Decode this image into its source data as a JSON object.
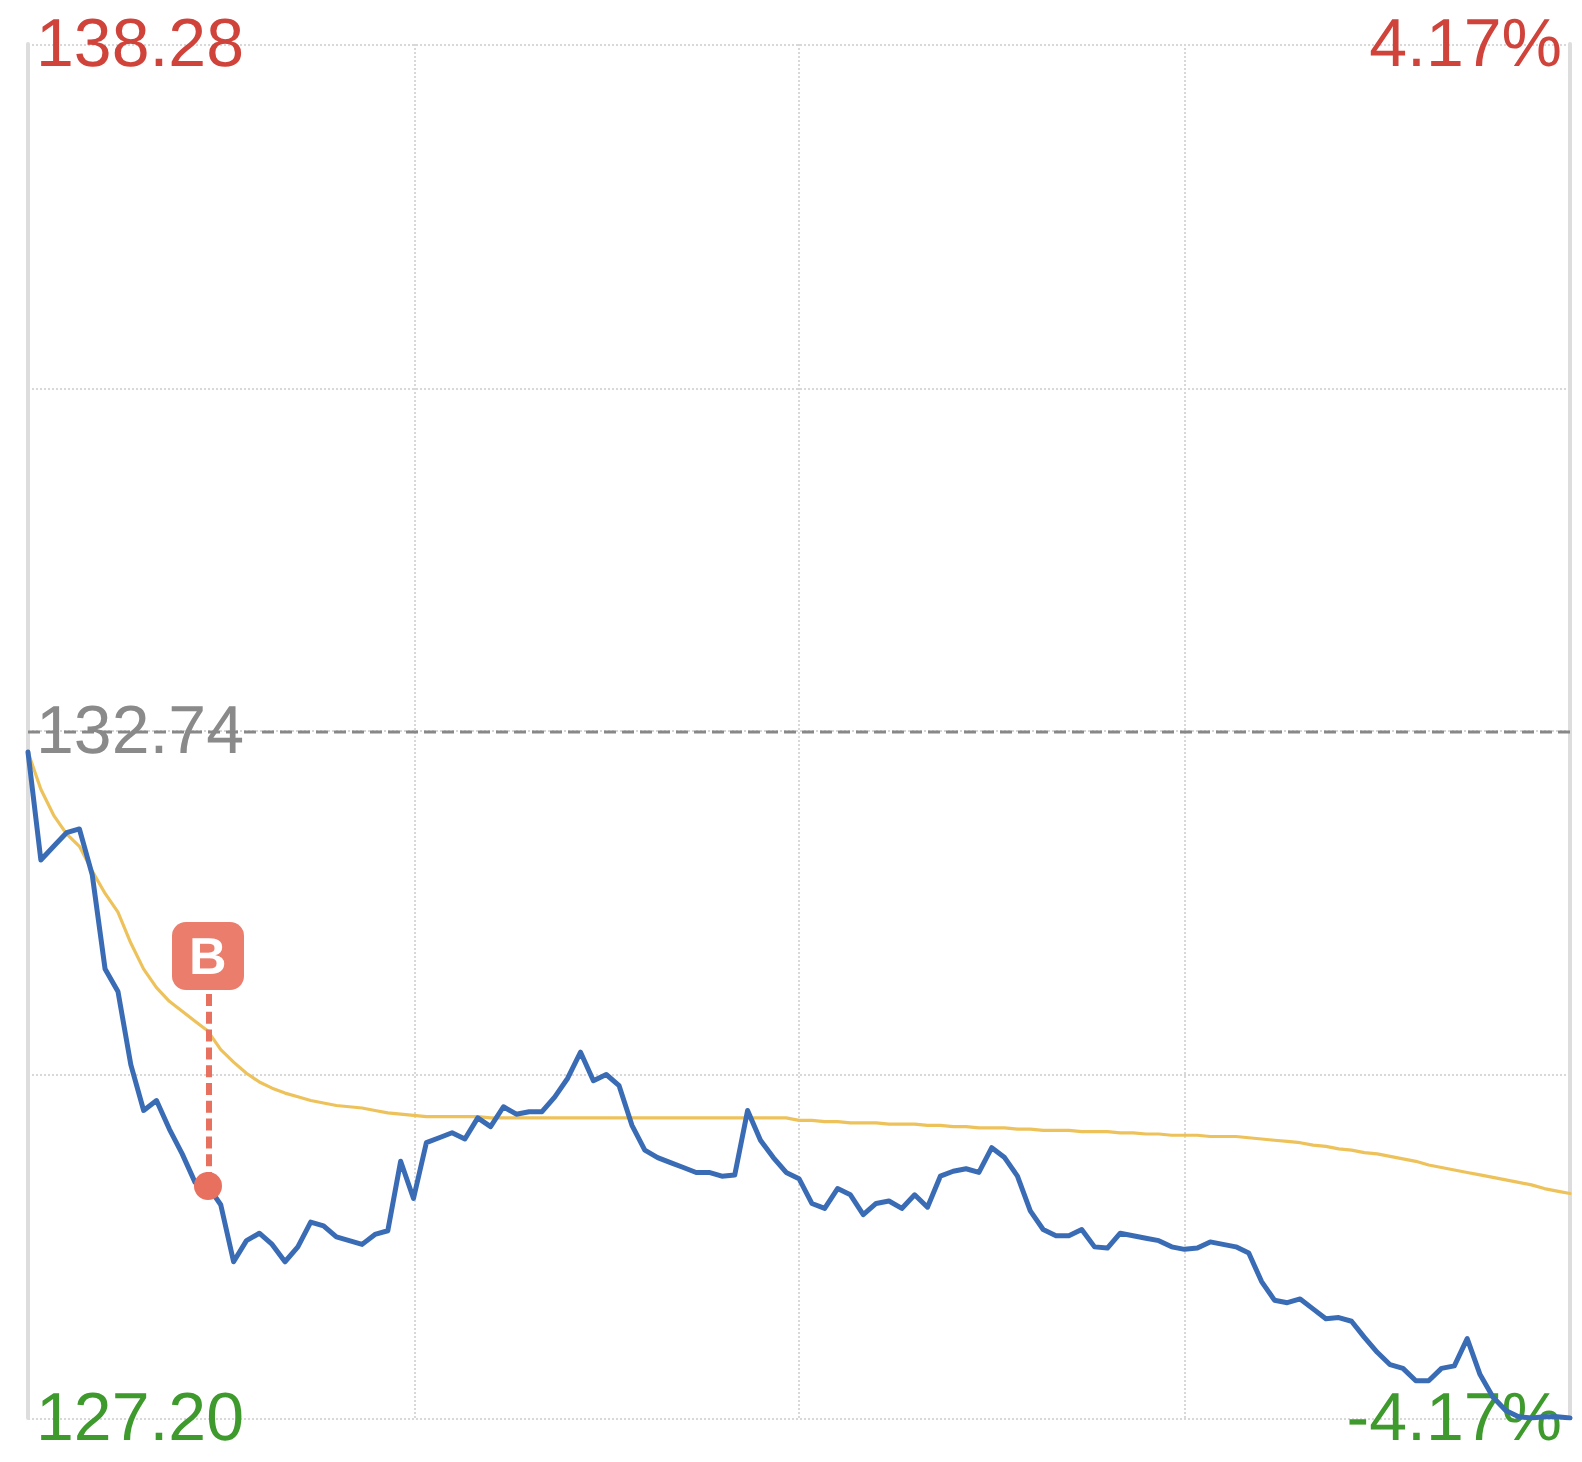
{
  "chart_data": {
    "type": "line",
    "categories": [
      null,
      null,
      null,
      null,
      null,
      null,
      null,
      null,
      null,
      null,
      null,
      null,
      null,
      null,
      null,
      null,
      null,
      null,
      null,
      null,
      null,
      null,
      null,
      null,
      null,
      null,
      null,
      null,
      null,
      null,
      null,
      null,
      null,
      null,
      null,
      null,
      null,
      null,
      null,
      null,
      null,
      null,
      null,
      null,
      null,
      null,
      null,
      null,
      null,
      null,
      null,
      null,
      null,
      null,
      null,
      null,
      null,
      null,
      null,
      null,
      null,
      null,
      null,
      null,
      null,
      null,
      null,
      null,
      null,
      null,
      null,
      null,
      null,
      null,
      null,
      null,
      null,
      null,
      null,
      null,
      null,
      null,
      null,
      null,
      null,
      null,
      null,
      null,
      null,
      null,
      null,
      null,
      null,
      null,
      null,
      null,
      null,
      null,
      null,
      null,
      null,
      null,
      null,
      null,
      null,
      null,
      null,
      null,
      null,
      null,
      null,
      null,
      null,
      null,
      null,
      null,
      null,
      null,
      null,
      null,
      null
    ],
    "ylim": [
      127.2,
      138.28
    ],
    "yticks": [
      {
        "value": 127.2,
        "label": "127.20"
      },
      {
        "value": 129.97,
        "label": null
      },
      {
        "value": 132.74,
        "label": "132.74"
      },
      {
        "value": 135.51,
        "label": null
      },
      {
        "value": 138.28,
        "label": "138.28"
      }
    ],
    "y2lim": [
      -4.17,
      4.17
    ],
    "y2ticks": [
      {
        "value": -4.17,
        "label": "-4.17%"
      },
      {
        "value": 4.17,
        "label": "4.17%"
      }
    ],
    "tick_labels": "y",
    "grid": true,
    "line_style": "solid",
    "ref_lines": [
      {
        "axis": "y",
        "value": 132.74,
        "color": "#888888",
        "line_style": "dashed"
      }
    ],
    "annotations": [
      {
        "text": "B",
        "y": 129.07
      }
    ],
    "series": [
      {
        "color": "#3a6cb5",
        "values": [
          132.57,
          131.7,
          131.81,
          131.92,
          131.95,
          131.58,
          130.82,
          130.64,
          130.05,
          129.68,
          129.76,
          129.53,
          129.33,
          129.1,
          129.07,
          128.92,
          128.46,
          128.63,
          128.69,
          128.6,
          128.46,
          128.58,
          128.78,
          128.75,
          128.66,
          128.63,
          128.6,
          128.68,
          128.71,
          129.27,
          128.97,
          129.42,
          129.46,
          129.5,
          129.45,
          129.62,
          129.55,
          129.71,
          129.65,
          129.67,
          129.67,
          129.79,
          129.94,
          130.15,
          129.92,
          129.97,
          129.88,
          129.56,
          129.36,
          129.3,
          129.26,
          129.22,
          129.18,
          129.18,
          129.15,
          129.16,
          129.68,
          129.44,
          129.3,
          129.18,
          129.13,
          128.93,
          128.89,
          129.05,
          129.0,
          128.84,
          128.93,
          128.95,
          128.89,
          129.0,
          128.9,
          129.15,
          129.19,
          129.21,
          129.18,
          129.38,
          129.3,
          129.15,
          128.87,
          128.72,
          128.67,
          128.67,
          128.72,
          128.58,
          128.57,
          128.69,
          128.67,
          128.65,
          128.63,
          128.58,
          128.56,
          128.57,
          128.62,
          128.6,
          128.58,
          128.53,
          128.3,
          128.15,
          128.13,
          128.16,
          128.08,
          128.0,
          128.01,
          127.98,
          127.85,
          127.73,
          127.63,
          127.6,
          127.5,
          127.5,
          127.6,
          127.62,
          127.84,
          127.55,
          127.37,
          127.26,
          127.21,
          127.2,
          127.21,
          127.21,
          127.2
        ]
      },
      {
        "color": "#eec25a",
        "values": [
          132.57,
          132.27,
          132.06,
          131.91,
          131.81,
          131.61,
          131.43,
          131.28,
          131.03,
          130.82,
          130.67,
          130.56,
          130.48,
          130.4,
          130.32,
          130.17,
          130.07,
          129.98,
          129.91,
          129.86,
          129.82,
          129.79,
          129.76,
          129.74,
          129.72,
          129.71,
          129.7,
          129.68,
          129.66,
          129.65,
          129.64,
          129.63,
          129.63,
          129.63,
          129.63,
          129.63,
          129.62,
          129.62,
          129.62,
          129.62,
          129.62,
          129.62,
          129.62,
          129.62,
          129.62,
          129.62,
          129.62,
          129.62,
          129.62,
          129.62,
          129.62,
          129.62,
          129.62,
          129.62,
          129.62,
          129.62,
          129.62,
          129.62,
          129.62,
          129.62,
          129.6,
          129.6,
          129.59,
          129.59,
          129.58,
          129.58,
          129.58,
          129.57,
          129.57,
          129.57,
          129.56,
          129.56,
          129.55,
          129.55,
          129.54,
          129.54,
          129.54,
          129.53,
          129.53,
          129.52,
          129.52,
          129.52,
          129.51,
          129.51,
          129.51,
          129.5,
          129.5,
          129.49,
          129.49,
          129.48,
          129.48,
          129.48,
          129.47,
          129.47,
          129.47,
          129.46,
          129.45,
          129.44,
          129.43,
          129.42,
          129.4,
          129.39,
          129.37,
          129.36,
          129.34,
          129.33,
          129.31,
          129.29,
          129.27,
          129.24,
          129.22,
          129.2,
          129.18,
          129.16,
          129.14,
          129.12,
          129.1,
          129.08,
          129.05,
          129.03,
          129.01
        ]
      }
    ]
  }
}
